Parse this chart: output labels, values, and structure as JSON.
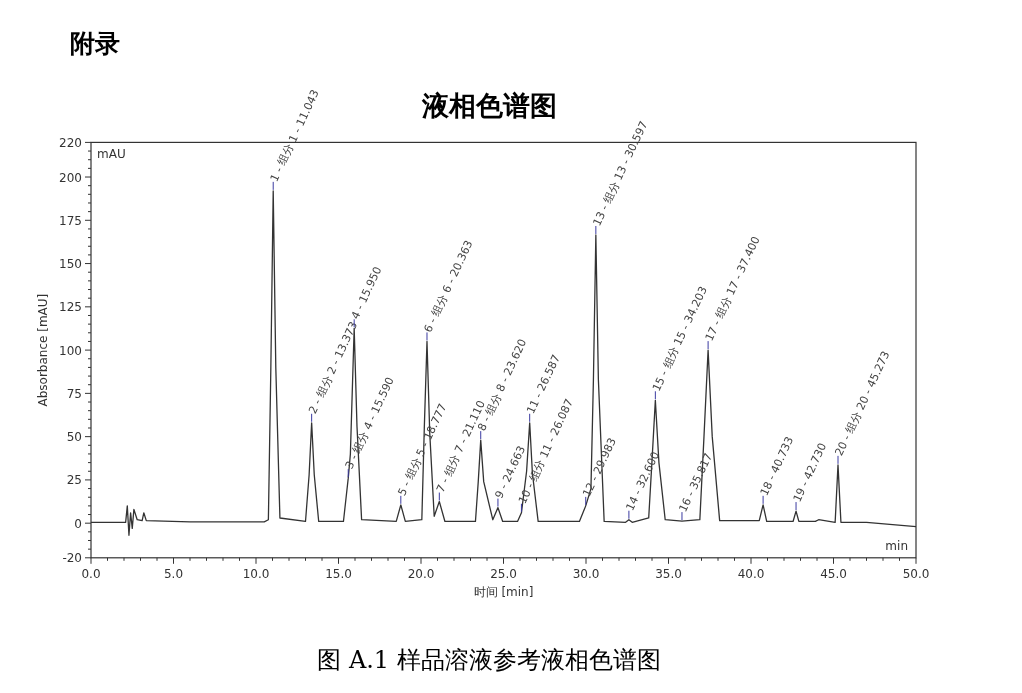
{
  "chart_data": {
    "type": "line",
    "title": "液相色谱图",
    "xlabel": "时间 [min]",
    "ylabel": "Absorbance [mAU]",
    "xlim": [
      0,
      50
    ],
    "ylim": [
      -20,
      220
    ],
    "xticks": [
      {
        "value": 0,
        "label": "0.0"
      },
      {
        "value": 5,
        "label": "5.0"
      },
      {
        "value": 10,
        "label": "10.0"
      },
      {
        "value": 15,
        "label": "15.0"
      },
      {
        "value": 20,
        "label": "20.0"
      },
      {
        "value": 25,
        "label": "25.0"
      },
      {
        "value": 30,
        "label": "30.0"
      },
      {
        "value": 35,
        "label": "35.0"
      },
      {
        "value": 40,
        "label": "40.0"
      },
      {
        "value": 45,
        "label": "45.0"
      },
      {
        "value": 50,
        "label": "50.0"
      }
    ],
    "yticks": [
      -20,
      0,
      25,
      50,
      75,
      100,
      125,
      150,
      175,
      200,
      220
    ],
    "grid": false,
    "marker": "none",
    "line_style": "solid",
    "series": [
      {
        "color": "#333333",
        "x": [
          0,
          2.1,
          2.2,
          2.3,
          2.4,
          2.5,
          2.6,
          2.8,
          3.1,
          3.2,
          3.35,
          6,
          10.5,
          10.75,
          10.9,
          11.043,
          11.2,
          11.45,
          13.0,
          13.22,
          13.373,
          13.53,
          13.8,
          15.3,
          15.45,
          15.59,
          15.72,
          15.95,
          16.12,
          16.4,
          18.5,
          18.777,
          19.05,
          20.05,
          20.2,
          20.363,
          20.53,
          20.8,
          21.11,
          21.45,
          23.3,
          23.47,
          23.62,
          23.8,
          24.35,
          24.663,
          24.95,
          25.85,
          26.087,
          26.4,
          26.587,
          26.75,
          27.1,
          29.6,
          29.983,
          30.3,
          30.45,
          30.597,
          30.75,
          31.1,
          32.4,
          32.6,
          32.8,
          33.8,
          34.0,
          34.203,
          34.42,
          34.8,
          35.817,
          36.9,
          37.15,
          37.4,
          37.65,
          38.1,
          40.5,
          40.733,
          40.95,
          42.55,
          42.73,
          42.9,
          43.9,
          44.1,
          45.1,
          45.273,
          45.45,
          47,
          50
        ],
        "values": [
          0.5,
          0.5,
          10,
          -7,
          6,
          -3,
          8,
          2,
          1.5,
          6,
          1.5,
          0.8,
          0.8,
          2,
          90,
          192,
          90,
          3,
          1,
          28,
          58,
          28,
          1,
          1,
          14,
          26,
          40,
          112.6,
          56,
          2,
          1,
          10.6,
          1,
          2,
          55,
          105,
          52,
          4,
          12.5,
          1,
          1,
          24,
          48,
          24,
          2,
          9,
          1,
          1,
          6,
          30,
          58,
          29,
          1,
          1,
          10,
          20,
          83,
          166.5,
          83,
          1,
          0.5,
          2,
          0.5,
          3,
          36,
          71,
          35,
          2,
          1.2,
          2,
          50,
          100,
          50,
          1.5,
          1.5,
          10.6,
          1,
          1,
          7,
          1,
          1,
          2,
          0.5,
          33.7,
          0.5,
          0.5,
          -2
        ]
      }
    ],
    "annotations": [
      "附录",
      "mAU",
      "min",
      "图 A.1  样品溶液参考液相色谱图",
      {
        "text": "1 - 组分 1 - 11.043",
        "x": 11.043,
        "y": 192
      },
      {
        "text": "2 - 组分 2 - 13.373",
        "x": 13.373,
        "y": 58
      },
      {
        "text": "3 - 组分 4 - 15.590",
        "x": 15.59,
        "y": 26
      },
      {
        "text": "4 - 15.950",
        "x": 15.95,
        "y": 112.6
      },
      {
        "text": "5 - 组分 5 - 18.777",
        "x": 18.777,
        "y": 10.6
      },
      {
        "text": "6 - 组分 6 - 20.363",
        "x": 20.363,
        "y": 105
      },
      {
        "text": "7 - 组分 7 - 21.110",
        "x": 21.11,
        "y": 12.5
      },
      {
        "text": "8 - 组分 8 - 23.620",
        "x": 23.62,
        "y": 48
      },
      {
        "text": "9 - 24.663",
        "x": 24.663,
        "y": 9
      },
      {
        "text": "10 - 组分 11 - 26.087",
        "x": 26.087,
        "y": 6
      },
      {
        "text": "11 - 26.587",
        "x": 26.587,
        "y": 58
      },
      {
        "text": "12 - 29.983",
        "x": 29.983,
        "y": 10
      },
      {
        "text": "13 - 组分 13 - 30.597",
        "x": 30.597,
        "y": 166.5
      },
      {
        "text": "14 - 32.600",
        "x": 32.6,
        "y": 2
      },
      {
        "text": "15 - 组分 15 - 34.203",
        "x": 34.203,
        "y": 71
      },
      {
        "text": "16 - 35.817",
        "x": 35.817,
        "y": 1.2
      },
      {
        "text": "17 - 组分 17 - 37.400",
        "x": 37.4,
        "y": 100
      },
      {
        "text": "18 - 40.733",
        "x": 40.733,
        "y": 10.6
      },
      {
        "text": "19 - 42.730",
        "x": 42.73,
        "y": 7
      },
      {
        "text": "20 - 组分 20 - 45.273",
        "x": 45.273,
        "y": 33.7
      }
    ]
  }
}
